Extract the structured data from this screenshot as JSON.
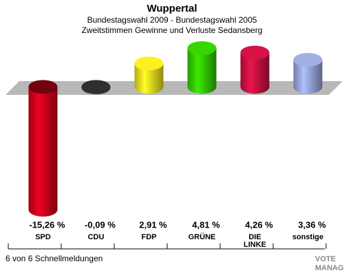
{
  "chart_data": {
    "type": "bar3d",
    "title": "Wuppertal",
    "subtitle": [
      "Bundestagswahl 2009 - Bundestagswahl 2005",
      "Zweitstimmen Gewinne und Verluste Sedansberg"
    ],
    "categories": [
      "SPD",
      "CDU",
      "FDP",
      "GRÜNE",
      "DIE LINKE",
      "sonstige"
    ],
    "values": [
      -15.26,
      -0.09,
      2.91,
      4.81,
      4.26,
      3.36
    ],
    "value_labels": [
      "-15,26 %",
      "-0,09 %",
      "2,91 %",
      "4,81 %",
      "4,26 %",
      "3,36 %"
    ],
    "colors": [
      "#d0021b",
      "#555555",
      "#f2e41f",
      "#33cc00",
      "#cc1144",
      "#98a8dc"
    ],
    "footer": "6 von 6 Schnellmeldungen",
    "logo": [
      "VOTE",
      "MANAGER"
    ]
  }
}
